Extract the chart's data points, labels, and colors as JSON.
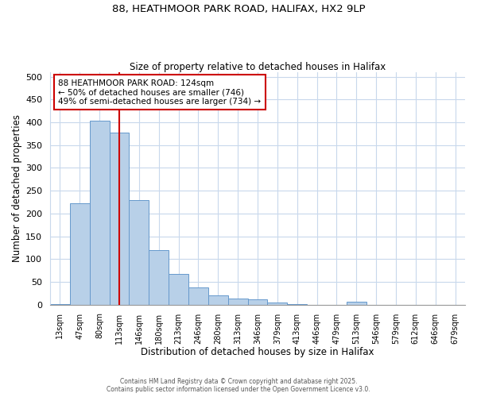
{
  "title_line1": "88, HEATHMOOR PARK ROAD, HALIFAX, HX2 9LP",
  "title_line2": "Size of property relative to detached houses in Halifax",
  "xlabel": "Distribution of detached houses by size in Halifax",
  "ylabel": "Number of detached properties",
  "bar_labels": [
    "13sqm",
    "47sqm",
    "80sqm",
    "113sqm",
    "146sqm",
    "180sqm",
    "213sqm",
    "246sqm",
    "280sqm",
    "313sqm",
    "346sqm",
    "379sqm",
    "413sqm",
    "446sqm",
    "479sqm",
    "513sqm",
    "546sqm",
    "579sqm",
    "612sqm",
    "646sqm",
    "679sqm"
  ],
  "bar_values": [
    2,
    222,
    403,
    377,
    230,
    119,
    67,
    38,
    20,
    14,
    12,
    5,
    2,
    0,
    0,
    6,
    0,
    0,
    0,
    0,
    0
  ],
  "bar_color": "#b8d0e8",
  "bar_edge_color": "#6699cc",
  "vline_x": 3,
  "vline_color": "#cc0000",
  "ylim": [
    0,
    510
  ],
  "yticks": [
    0,
    50,
    100,
    150,
    200,
    250,
    300,
    350,
    400,
    450,
    500
  ],
  "annotation_title": "88 HEATHMOOR PARK ROAD: 124sqm",
  "annotation_line2": "← 50% of detached houses are smaller (746)",
  "annotation_line3": "49% of semi-detached houses are larger (734) →",
  "footer_line1": "Contains HM Land Registry data © Crown copyright and database right 2025.",
  "footer_line2": "Contains public sector information licensed under the Open Government Licence v3.0.",
  "background_color": "#ffffff",
  "grid_color": "#c8d8ec"
}
